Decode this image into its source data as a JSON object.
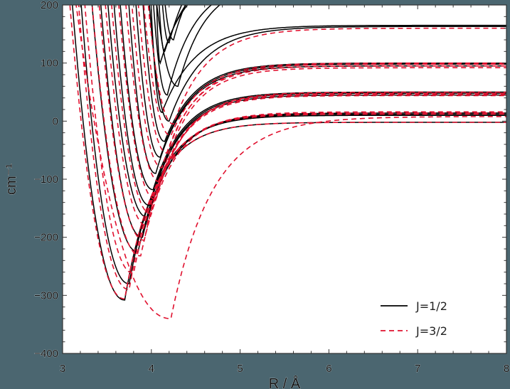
{
  "chart_data": {
    "type": "line",
    "title": "",
    "xlabel": "R / Å",
    "ylabel": "cm⁻¹",
    "xlim": [
      3,
      8
    ],
    "ylim": [
      -400,
      200
    ],
    "xticks": [
      3,
      4,
      5,
      6,
      7,
      8
    ],
    "yticks": [
      -400,
      -300,
      -200,
      -100,
      0,
      100,
      200
    ],
    "xtick_labels": [
      "3",
      "4",
      "5",
      "6",
      "7",
      "8"
    ],
    "ytick_labels": [
      "−400",
      "−300",
      "−200",
      "−100",
      "0",
      "100",
      "200"
    ],
    "grid": false,
    "legend_position": "lower right",
    "colors": {
      "j12": "#000000",
      "j32": "#e0102e",
      "background": "#4b6670",
      "plot_bg": "#ffffff"
    },
    "legend": [
      {
        "label": "J=1/2",
        "style": "solid",
        "color": "#000000"
      },
      {
        "label": "J=3/2",
        "style": "dashed",
        "color": "#e0102e"
      }
    ],
    "series": [
      {
        "name": "J=1/2",
        "style": "solid",
        "curves": [
          {
            "wall": 3.08,
            "rmin": 3.7,
            "emin": -308,
            "asym": -2,
            "w": 0.55
          },
          {
            "wall": 3.18,
            "rmin": 3.75,
            "emin": -280,
            "asym": 10,
            "w": 0.55
          },
          {
            "wall": 3.3,
            "rmin": 3.85,
            "emin": -225,
            "asym": 12,
            "w": 0.55
          },
          {
            "wall": 3.4,
            "rmin": 3.9,
            "emin": -200,
            "asym": 14,
            "w": 0.55
          },
          {
            "wall": 3.48,
            "rmin": 3.95,
            "emin": -165,
            "asym": 45,
            "w": 0.55
          },
          {
            "wall": 3.55,
            "rmin": 3.98,
            "emin": -145,
            "asym": 48,
            "w": 0.55
          },
          {
            "wall": 3.62,
            "rmin": 4.02,
            "emin": -118,
            "asym": 50,
            "w": 0.55
          },
          {
            "wall": 3.72,
            "rmin": 4.05,
            "emin": -90,
            "asym": 95,
            "w": 0.55
          },
          {
            "wall": 3.8,
            "rmin": 4.1,
            "emin": -62,
            "asym": 98,
            "w": 0.55
          },
          {
            "wall": 3.88,
            "rmin": 4.15,
            "emin": -35,
            "asym": 100,
            "w": 0.55
          },
          {
            "wall": 3.95,
            "rmin": 4.2,
            "emin": 0,
            "asym": 163,
            "w": 0.6
          },
          {
            "wall": 3.98,
            "rmin": 4.12,
            "emin": 15,
            "asym": 165,
            "w": 0.6
          },
          {
            "wall": 4.0,
            "rmin": 4.18,
            "emin": 45,
            "asym": 240,
            "w": 0.5
          },
          {
            "wall": 4.02,
            "rmin": 4.3,
            "emin": 60,
            "asym": 240,
            "w": 0.5
          },
          {
            "wall": 4.05,
            "rmin": 4.1,
            "emin": 100,
            "asym": 260,
            "w": 0.5
          },
          {
            "wall": 4.07,
            "rmin": 4.15,
            "emin": 120,
            "asym": 270,
            "w": 0.5
          },
          {
            "wall": 4.1,
            "rmin": 4.2,
            "emin": 135,
            "asym": 300,
            "w": 0.45
          },
          {
            "wall": 4.12,
            "rmin": 4.25,
            "emin": 140,
            "asym": 300,
            "w": 0.45
          }
        ]
      },
      {
        "name": "J=3/2",
        "style": "dashed",
        "curves": [
          {
            "wall": 3.05,
            "rmin": 3.7,
            "emin": -306,
            "asym": -2,
            "w": 0.55
          },
          {
            "wall": 3.1,
            "rmin": 4.22,
            "emin": -340,
            "asym": 8,
            "w": 0.75
          },
          {
            "wall": 3.15,
            "rmin": 3.75,
            "emin": -290,
            "asym": 12,
            "w": 0.55
          },
          {
            "wall": 3.22,
            "rmin": 3.8,
            "emin": -262,
            "asym": 14,
            "w": 0.55
          },
          {
            "wall": 3.3,
            "rmin": 3.88,
            "emin": -232,
            "asym": 16,
            "w": 0.55
          },
          {
            "wall": 3.38,
            "rmin": 3.92,
            "emin": -205,
            "asym": 44,
            "w": 0.55
          },
          {
            "wall": 3.45,
            "rmin": 3.95,
            "emin": -180,
            "asym": 46,
            "w": 0.55
          },
          {
            "wall": 3.52,
            "rmin": 4.0,
            "emin": -160,
            "asym": 48,
            "w": 0.55
          },
          {
            "wall": 3.6,
            "rmin": 4.05,
            "emin": -135,
            "asym": 50,
            "w": 0.55
          },
          {
            "wall": 3.68,
            "rmin": 4.1,
            "emin": -105,
            "asym": 92,
            "w": 0.55
          },
          {
            "wall": 3.75,
            "rmin": 4.12,
            "emin": -80,
            "asym": 95,
            "w": 0.55
          },
          {
            "wall": 3.82,
            "rmin": 4.18,
            "emin": -55,
            "asym": 98,
            "w": 0.55
          },
          {
            "wall": 3.88,
            "rmin": 4.22,
            "emin": -25,
            "asym": 100,
            "w": 0.55
          },
          {
            "wall": 3.93,
            "rmin": 4.25,
            "emin": -5,
            "asym": 160,
            "w": 0.6
          }
        ]
      }
    ]
  }
}
